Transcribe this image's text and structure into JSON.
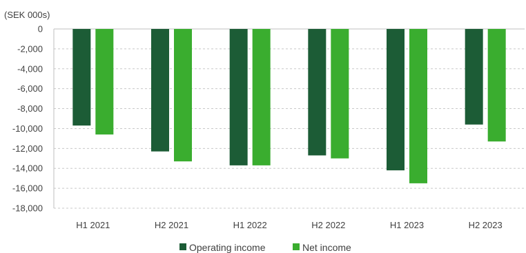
{
  "chart_data": {
    "type": "bar",
    "unit_label": "(SEK 000s)",
    "categories": [
      "H1 2021",
      "H2 2021",
      "H1 2022",
      "H2 2022",
      "H1 2023",
      "H2 2023"
    ],
    "series": [
      {
        "name": "Operating income",
        "color": "#1c5c36",
        "values": [
          -9700,
          -12300,
          -13700,
          -12700,
          -14200,
          -9600
        ]
      },
      {
        "name": "Net income",
        "color": "#3aad2f",
        "values": [
          -10600,
          -13300,
          -13700,
          -13000,
          -15500,
          -11300
        ]
      }
    ],
    "ylim": [
      -18000,
      0
    ],
    "yticks": [
      0,
      -2000,
      -4000,
      -6000,
      -8000,
      -10000,
      -12000,
      -14000,
      -16000,
      -18000
    ],
    "ytick_labels": [
      "0",
      "-2,000",
      "-4,000",
      "-6,000",
      "-8,000",
      "-10,000",
      "-12,000",
      "-14,000",
      "-16,000",
      "-18,000"
    ],
    "grid": true,
    "legend_position": "bottom"
  }
}
